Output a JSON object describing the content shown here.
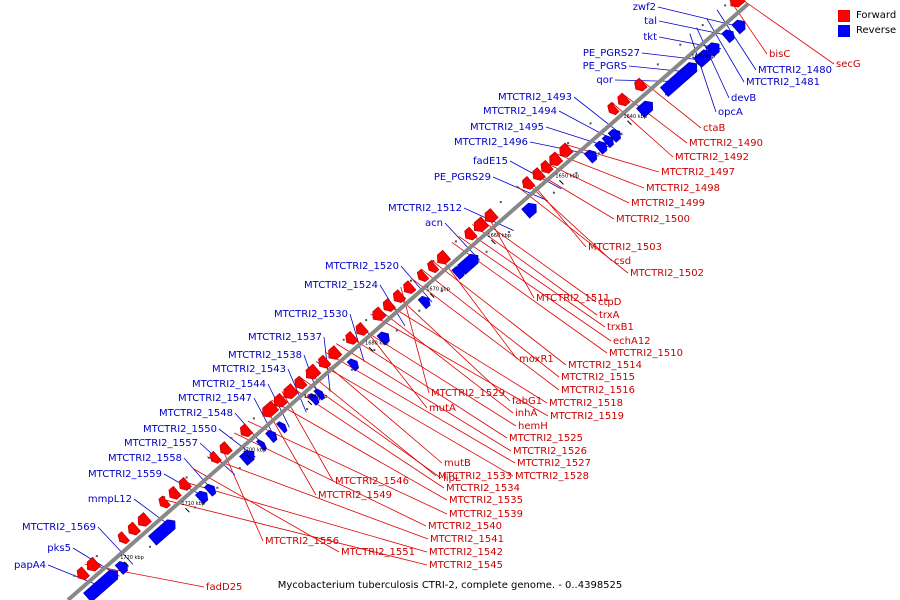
{
  "title": "Mycobacterium tuberculosis CTRI-2, complete genome. - 0..4398525",
  "legend": [
    {
      "label": "Forward",
      "color": "#ff0000"
    },
    {
      "label": "Reverse",
      "color": "#0000ff"
    }
  ],
  "colors": {
    "forward": "#ff0000",
    "reverse": "#0000ff",
    "forward_line": "#e00000",
    "reverse_line": "#0000cc",
    "axis": "#888888"
  },
  "ticks": [
    "1630 kbp",
    "1640 kbp",
    "1650 kbp",
    "1660 kbp",
    "1670 kbp",
    "1680 kbp",
    "1690 kbp",
    "1700 kbp",
    "1710 kbp",
    "1720 kbp"
  ],
  "reverse_genes": [
    "zwf2",
    "tal",
    "tkt",
    "PE_PGRS27",
    "PE_PGRS",
    "qor",
    "MTCTRI2_1493",
    "MTCTRI2_1494",
    "MTCTRI2_1495",
    "MTCTRI2_1496",
    "fadE15",
    "PE_PGRS29",
    "MTCTRI2_1512",
    "acn",
    "MTCTRI2_1520",
    "MTCTRI2_1524",
    "MTCTRI2_1530",
    "MTCTRI2_1537",
    "MTCTRI2_1538",
    "MTCTRI2_1543",
    "MTCTRI2_1544",
    "MTCTRI2_1547",
    "MTCTRI2_1548",
    "MTCTRI2_1550",
    "MTCTRI2_1557",
    "MTCTRI2_1558",
    "MTCTRI2_1559",
    "mmpL12",
    "MTCTRI2_1569",
    "pks5",
    "papA4"
  ],
  "reverse_genes_below": [
    "MTCTRI2_1480",
    "MTCTRI2_1481",
    "devB",
    "opcA"
  ],
  "forward_genes": [
    "secG",
    "bisC",
    "ctaB",
    "MTCTRI2_1490",
    "MTCTRI2_1492",
    "MTCTRI2_1497",
    "MTCTRI2_1498",
    "MTCTRI2_1499",
    "MTCTRI2_1500",
    "MTCTRI2_1503",
    "csd",
    "MTCTRI2_1502",
    "MTCTRI2_1511",
    "ctpD",
    "trxA",
    "trxB1",
    "echA12",
    "MTCTRI2_1510",
    "moxR1",
    "MTCTRI2_1514",
    "MTCTRI2_1515",
    "MTCTRI2_1516",
    "MTCTRI2_1529",
    "fabG1",
    "MTCTRI2_1518",
    "inhA",
    "MTCTRI2_1519",
    "mutA",
    "hemH",
    "MTCTRI2_1525",
    "MTCTRI2_1526",
    "MTCTRI2_1527",
    "mutB",
    "MTCTRI2_1528",
    "MTCTRI2_1533",
    "lipL",
    "MTCTRI2_1534",
    "MTCTRI2_1546",
    "MTCTRI2_1535",
    "MTCTRI2_1549",
    "MTCTRI2_1539",
    "MTCTRI2_1540",
    "MTCTRI2_1556",
    "MTCTRI2_1541",
    "MTCTRI2_1551",
    "MTCTRI2_1542",
    "MTCTRI2_1545",
    "fadD25"
  ]
}
